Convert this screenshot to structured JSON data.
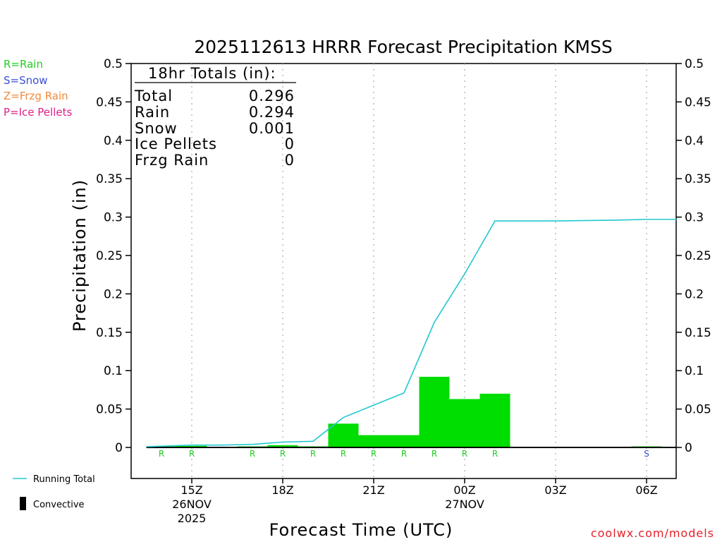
{
  "chart_data": {
    "type": "bar",
    "title": "2025112613 HRRR Forecast Precipitation KMSS",
    "xlabel": "Forecast Time (UTC)",
    "ylabel": "Precipitation (in)",
    "ylim": [
      -0.04,
      0.5
    ],
    "yticks": [
      "0",
      "0.05",
      "0.1",
      "0.15",
      "0.2",
      "0.25",
      "0.3",
      "0.35",
      "0.4",
      "0.45",
      "0.5"
    ],
    "x_range_hours": [
      13.0,
      31.0
    ],
    "xticks": [
      {
        "hour": 15,
        "label": "15Z",
        "date": "26NOV",
        "year": "2025"
      },
      {
        "hour": 18,
        "label": "18Z",
        "date": "",
        "year": ""
      },
      {
        "hour": 21,
        "label": "21Z",
        "date": "",
        "year": ""
      },
      {
        "hour": 24,
        "label": "00Z",
        "date": "27NOV",
        "year": ""
      },
      {
        "hour": 27,
        "label": "03Z",
        "date": "",
        "year": ""
      },
      {
        "hour": 30,
        "label": "06Z",
        "date": "",
        "year": ""
      }
    ],
    "grid": "vertical-dotted",
    "hourly_precip": [
      {
        "hour": 14,
        "value": 0.001,
        "type": "R"
      },
      {
        "hour": 15,
        "value": 0.002,
        "type": "R"
      },
      {
        "hour": 16,
        "value": 0.0,
        "type": ""
      },
      {
        "hour": 17,
        "value": 0.001,
        "type": "R"
      },
      {
        "hour": 18,
        "value": 0.003,
        "type": "R"
      },
      {
        "hour": 19,
        "value": 0.001,
        "type": "R"
      },
      {
        "hour": 20,
        "value": 0.031,
        "type": "R"
      },
      {
        "hour": 21,
        "value": 0.016,
        "type": "R"
      },
      {
        "hour": 22,
        "value": 0.016,
        "type": "R"
      },
      {
        "hour": 23,
        "value": 0.092,
        "type": "R"
      },
      {
        "hour": 24,
        "value": 0.063,
        "type": "R"
      },
      {
        "hour": 25,
        "value": 0.07,
        "type": "R"
      },
      {
        "hour": 26,
        "value": 0.0,
        "type": ""
      },
      {
        "hour": 27,
        "value": 0.0,
        "type": ""
      },
      {
        "hour": 28,
        "value": 0.0,
        "type": ""
      },
      {
        "hour": 29,
        "value": 0.0,
        "type": ""
      },
      {
        "hour": 30,
        "value": 0.001,
        "type": "S"
      },
      {
        "hour": 31,
        "value": 0.0,
        "type": ""
      }
    ],
    "running_total": {
      "name": "Running Total",
      "points": [
        {
          "hour": 13.5,
          "value": 0.001
        },
        {
          "hour": 15,
          "value": 0.003
        },
        {
          "hour": 16,
          "value": 0.003
        },
        {
          "hour": 17,
          "value": 0.004
        },
        {
          "hour": 18,
          "value": 0.007
        },
        {
          "hour": 19,
          "value": 0.008
        },
        {
          "hour": 20,
          "value": 0.039
        },
        {
          "hour": 21,
          "value": 0.055
        },
        {
          "hour": 22,
          "value": 0.071
        },
        {
          "hour": 23,
          "value": 0.163
        },
        {
          "hour": 24,
          "value": 0.226
        },
        {
          "hour": 25,
          "value": 0.295
        },
        {
          "hour": 27,
          "value": 0.295
        },
        {
          "hour": 29,
          "value": 0.296
        },
        {
          "hour": 30,
          "value": 0.297
        },
        {
          "hour": 31,
          "value": 0.297
        }
      ]
    },
    "totals_box": {
      "heading": "18hr Totals (in):",
      "rows": [
        {
          "label": "Total",
          "value": "0.296"
        },
        {
          "label": "Rain",
          "value": "0.294"
        },
        {
          "label": "Snow",
          "value": "0.001"
        },
        {
          "label": "Ice Pellets",
          "value": "0"
        },
        {
          "label": "Frzg Rain",
          "value": "0"
        }
      ]
    },
    "type_key": [
      {
        "label": "R=Rain",
        "color": "#22cc22"
      },
      {
        "label": "S=Snow",
        "color": "#3a4fd8"
      },
      {
        "label": "Z=Frzg Rain",
        "color": "#f08a3c"
      },
      {
        "label": "P=Ice Pellets",
        "color": "#e0208a"
      }
    ],
    "legend": [
      {
        "label": "Running Total",
        "kind": "line",
        "color": "#22c8d0"
      },
      {
        "label": "Convective",
        "kind": "bar",
        "color": "#000000"
      }
    ],
    "credit": "coolwx.com/models",
    "colors": {
      "bar": "#00dd00",
      "running_total": "#22c8d0",
      "rain_code": "#22cc22",
      "snow_code": "#3a4fd8"
    }
  }
}
